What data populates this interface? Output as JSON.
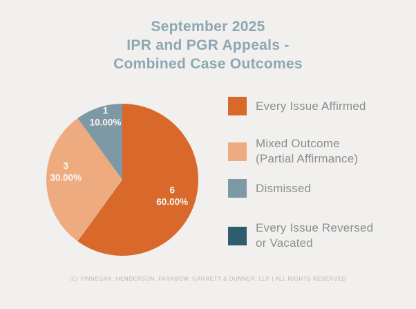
{
  "page": {
    "background_color": "#f1f0ee"
  },
  "header": {
    "title_lines": [
      "September 2025",
      "IPR and PGR Appeals -",
      "Combined Case Outcomes"
    ],
    "title_color": "#8ca7b3"
  },
  "chart_data": {
    "type": "pie",
    "title": "September 2025 IPR and PGR Appeals - Combined Case Outcomes",
    "direction": "clockwise",
    "start_angle_deg": 0,
    "legend_position": "right",
    "grid": false,
    "slice_label_text_color": "#f9f6f1",
    "slices": [
      {
        "label": "Every Issue Affirmed",
        "value": 6,
        "pct_label": "60.00%",
        "color": "#d8692b"
      },
      {
        "label": "Mixed Outcome (Partial Affirmance)",
        "value": 3,
        "pct_label": "30.00%",
        "color": "#efab80"
      },
      {
        "label": "Dismissed",
        "value": 1,
        "pct_label": "10.00%",
        "color": "#7e99a6"
      }
    ],
    "legend": [
      {
        "lines": [
          "Every Issue Affirmed"
        ],
        "color": "#d8692b"
      },
      {
        "lines": [
          "Mixed Outcome",
          "(Partial Affirmance)"
        ],
        "color": "#efab80"
      },
      {
        "lines": [
          "Dismissed"
        ],
        "color": "#7e99a6"
      },
      {
        "lines": [
          "Every Issue Reversed",
          "or Vacated"
        ],
        "color": "#2e5e6e"
      }
    ]
  },
  "footer": {
    "text": "(C) FINNEGAN, HENDERSON, FARABOW, GARRETT & DUNNER, LLP | ALL RIGHTS RESERVED"
  }
}
